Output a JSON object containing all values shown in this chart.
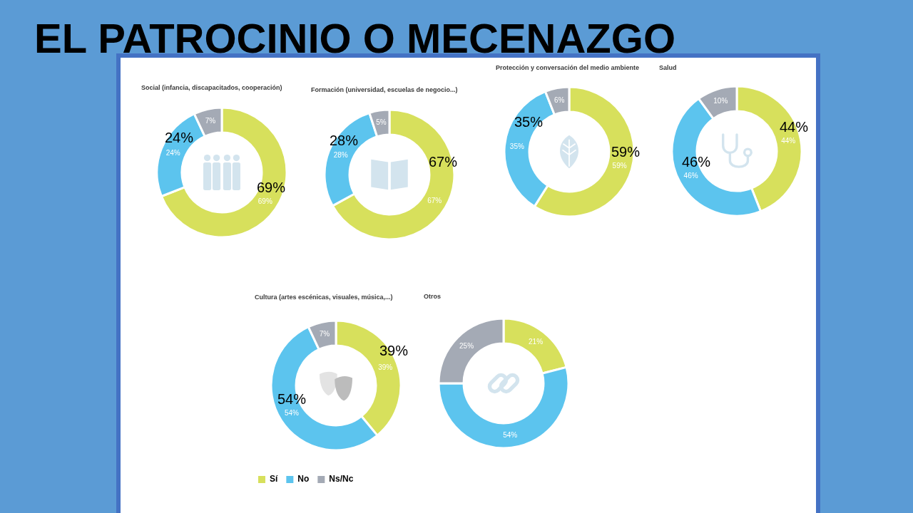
{
  "chart_data": [
    {
      "type": "other",
      "title": "EL PATROCINIO O MECENAZGO"
    },
    {
      "type": "donut",
      "title": "Social (infancia, discapacitados, cooperación)",
      "categories": [
        null,
        null,
        null
      ],
      "values": [
        69,
        24,
        7
      ],
      "colors": [
        "#d7e05c",
        "#5cc4ee",
        "#a4aab5"
      ],
      "value_labels": [
        "69%",
        "24%",
        "7%"
      ],
      "annotations": [
        "24%",
        "69%"
      ]
    },
    {
      "type": "donut",
      "title": "Formación (universidad, escuelas de negocio...)",
      "categories": [
        null,
        null,
        null
      ],
      "values": [
        67,
        28,
        5
      ],
      "colors": [
        "#d7e05c",
        "#5cc4ee",
        "#a4aab5"
      ],
      "value_labels": [
        "67%",
        "28%",
        "5%"
      ],
      "annotations": [
        "28%",
        "67%"
      ]
    },
    {
      "type": "donut",
      "title": "Protección y conversación del medio ambiente",
      "categories": [
        null,
        null,
        null
      ],
      "values": [
        59,
        35,
        6
      ],
      "colors": [
        "#d7e05c",
        "#5cc4ee",
        "#a4aab5"
      ],
      "value_labels": [
        "59%",
        "35%",
        "6%"
      ],
      "annotations": [
        "35%",
        "59%"
      ]
    },
    {
      "type": "donut",
      "title": "Salud",
      "categories": [
        null,
        null,
        null
      ],
      "values": [
        44,
        46,
        10
      ],
      "colors": [
        "#d7e05c",
        "#5cc4ee",
        "#a4aab5"
      ],
      "value_labels": [
        "44%",
        "46%",
        "10%"
      ],
      "annotations": [
        "44%",
        "46%"
      ]
    },
    {
      "type": "donut",
      "title": "Cultura (artes escénicas, visuales, música,...)",
      "categories": [
        "Sí",
        "No",
        "Ns/Nc"
      ],
      "values": [
        39,
        54,
        7
      ],
      "colors": [
        "#d7e05c",
        "#5cc4ee",
        "#a4aab5"
      ],
      "value_labels": [
        "39%",
        "54%",
        "7%"
      ],
      "annotations": [
        "39%",
        "54%"
      ],
      "legend": "bottom"
    },
    {
      "type": "donut",
      "title": "Otros",
      "categories": [
        null,
        null,
        null
      ],
      "values": [
        21,
        54,
        25
      ],
      "colors": [
        "#d7e05c",
        "#5cc4ee",
        "#a4aab5"
      ],
      "value_labels": [
        "21%",
        "54%",
        "25%"
      ]
    }
  ]
}
